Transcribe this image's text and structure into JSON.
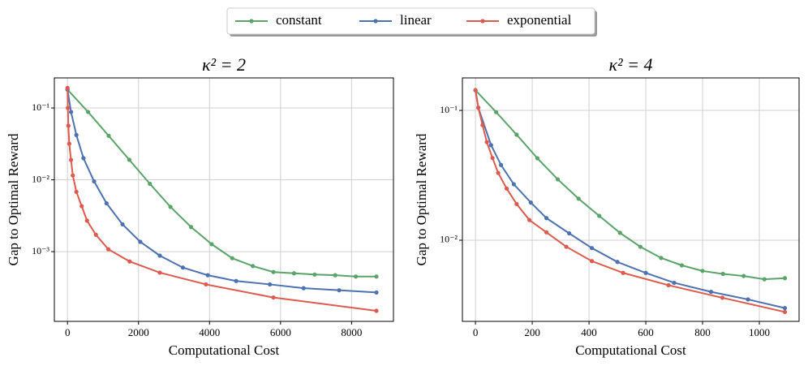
{
  "chart_data": [
    {
      "type": "line",
      "title": "κ² = 2",
      "xlabel": "Computational Cost",
      "ylabel": "Gap to Optimal Reward",
      "xlim": [
        -370,
        9180
      ],
      "ylim": [
        0.000107,
        0.262
      ],
      "yscale": "log",
      "grid": true,
      "legend": "upper center",
      "xticks": [
        0,
        2000,
        4000,
        6000,
        8000
      ],
      "yticks": [
        {
          "value": 0.1,
          "label": "10⁻¹"
        },
        {
          "value": 0.01,
          "label": "10⁻²"
        },
        {
          "value": 0.001,
          "label": "10⁻³"
        }
      ],
      "series": [
        {
          "name": "constant",
          "color": "#5aa469",
          "x": [
            0,
            580,
            1160,
            1740,
            2320,
            2900,
            3480,
            4060,
            4640,
            5220,
            5800,
            6380,
            6960,
            7540,
            8120,
            8700
          ],
          "values": [
            0.18,
            0.088,
            0.041,
            0.019,
            0.0088,
            0.0042,
            0.0022,
            0.00127,
            0.00081,
            0.00063,
            0.00052,
            0.0005,
            0.00048,
            0.00047,
            0.00045,
            0.00045
          ]
        },
        {
          "name": "linear",
          "color": "#4c72b0",
          "x": [
            0,
            100,
            250,
            450,
            750,
            1100,
            1550,
            2050,
            2600,
            3250,
            3950,
            4750,
            5700,
            6650,
            7650,
            8700
          ],
          "values": [
            0.18,
            0.088,
            0.042,
            0.02,
            0.0095,
            0.0047,
            0.0024,
            0.00137,
            0.00088,
            0.0006,
            0.00047,
            0.00039,
            0.00035,
            0.00031,
            0.00029,
            0.00027
          ]
        },
        {
          "name": "exponential",
          "color": "#dd5a4e",
          "x": [
            0,
            10,
            25,
            50,
            100,
            150,
            250,
            400,
            550,
            800,
            1150,
            1750,
            2600,
            3900,
            5800,
            8700
          ],
          "values": [
            0.19,
            0.1,
            0.0565,
            0.0318,
            0.0189,
            0.0115,
            0.0068,
            0.0043,
            0.0027,
            0.00172,
            0.00108,
            0.00073,
            0.00051,
            0.00035,
            0.00023,
            0.00015
          ]
        }
      ]
    },
    {
      "type": "line",
      "title": "κ² = 4",
      "xlabel": "Computational Cost",
      "ylabel": "Gap to Optimal Reward",
      "xlim": [
        -46,
        1140
      ],
      "ylim": [
        0.00237,
        0.178
      ],
      "yscale": "log",
      "grid": true,
      "xticks": [
        0,
        200,
        400,
        600,
        800,
        1000
      ],
      "yticks": [
        {
          "value": 0.1,
          "label": "10⁻¹"
        },
        {
          "value": 0.01,
          "label": "10⁻²"
        }
      ],
      "series": [
        {
          "name": "constant",
          "color": "#5aa469",
          "x": [
            0,
            73,
            145,
            218,
            290,
            363,
            436,
            509,
            581,
            654,
            727,
            800,
            872,
            945,
            1018,
            1090
          ],
          "values": [
            0.143,
            0.097,
            0.065,
            0.0428,
            0.0294,
            0.0209,
            0.0154,
            0.0114,
            0.0089,
            0.0073,
            0.0064,
            0.0058,
            0.0055,
            0.0053,
            0.005,
            0.0051
          ]
        },
        {
          "name": "linear",
          "color": "#4c72b0",
          "x": [
            0,
            10,
            55,
            90,
            135,
            195,
            250,
            330,
            410,
            500,
            600,
            700,
            830,
            960,
            1090
          ],
          "values": [
            0.143,
            0.105,
            0.054,
            0.038,
            0.027,
            0.0195,
            0.0148,
            0.0113,
            0.0087,
            0.0068,
            0.0056,
            0.0047,
            0.004,
            0.0035,
            0.003
          ]
        },
        {
          "name": "exponential",
          "color": "#dd5a4e",
          "x": [
            0,
            10,
            25,
            40,
            60,
            80,
            110,
            145,
            190,
            250,
            320,
            410,
            520,
            680,
            870,
            1090
          ],
          "values": [
            0.143,
            0.105,
            0.077,
            0.057,
            0.043,
            0.033,
            0.025,
            0.019,
            0.0143,
            0.0115,
            0.0089,
            0.0069,
            0.0056,
            0.0045,
            0.0036,
            0.0028
          ]
        }
      ]
    }
  ]
}
